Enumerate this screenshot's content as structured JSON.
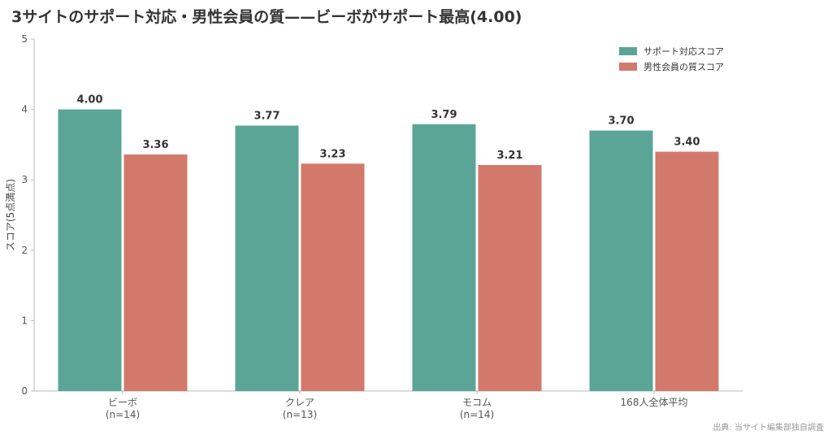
{
  "chart_data": {
    "type": "bar",
    "title": "3サイトのサポート対応・男性会員の質——ビーボがサポート最高(4.00)",
    "xlabel": "",
    "ylabel": "スコア(5点満点)",
    "ylim": [
      0,
      5
    ],
    "yticks": [
      0,
      1,
      2,
      3,
      4,
      5
    ],
    "grid": false,
    "legend_position": "top-right",
    "categories": [
      [
        "ビーボ",
        "(n=14)"
      ],
      [
        "クレア",
        "(n=13)"
      ],
      [
        "モコム",
        "(n=14)"
      ],
      [
        "168人全体平均"
      ]
    ],
    "series": [
      {
        "name": "サポート対応スコア",
        "color": "#5ba597",
        "values": [
          4.0,
          3.77,
          3.79,
          3.7
        ],
        "labels": [
          "4.00",
          "3.77",
          "3.79",
          "3.70"
        ]
      },
      {
        "name": "男性会員の質スコア",
        "color": "#d2796c",
        "values": [
          3.36,
          3.23,
          3.21,
          3.4
        ],
        "labels": [
          "3.36",
          "3.23",
          "3.21",
          "3.40"
        ]
      }
    ],
    "source": "出典: 当サイト編集部独自調査"
  }
}
